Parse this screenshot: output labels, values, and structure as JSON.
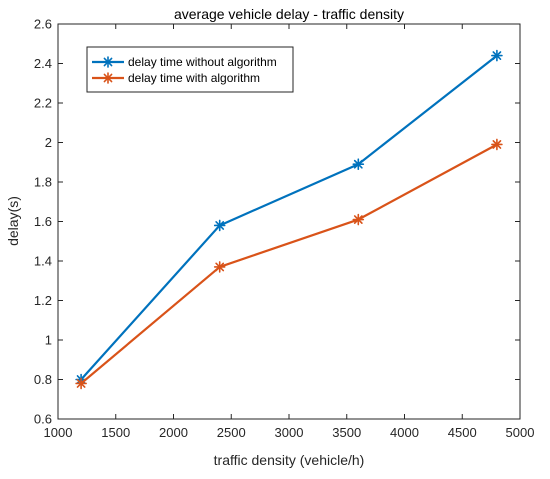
{
  "chart_data": {
    "type": "line",
    "title": "average vehicle delay - traffic density",
    "xlabel": "traffic density (vehicle/h)",
    "ylabel": "delay(s)",
    "xlim": [
      1000,
      5000
    ],
    "ylim": [
      0.6,
      2.6
    ],
    "xticks": [
      "1000",
      "1500",
      "2000",
      "2500",
      "3000",
      "3500",
      "4000",
      "4500",
      "5000"
    ],
    "yticks": [
      "0.6",
      "0.8",
      "1",
      "1.2",
      "1.4",
      "1.6",
      "1.8",
      "2",
      "2.2",
      "2.4",
      "2.6"
    ],
    "grid": false,
    "legend_position": "top-left",
    "x": [
      1200,
      2400,
      3600,
      4800
    ],
    "series": [
      {
        "name": "delay time without algorithm",
        "values": [
          0.8,
          1.58,
          1.89,
          2.44
        ],
        "color": "#0072BD",
        "marker": "asterisk"
      },
      {
        "name": "delay time with algorithm",
        "values": [
          0.78,
          1.37,
          1.61,
          1.99
        ],
        "color": "#D95319",
        "marker": "asterisk"
      }
    ]
  }
}
